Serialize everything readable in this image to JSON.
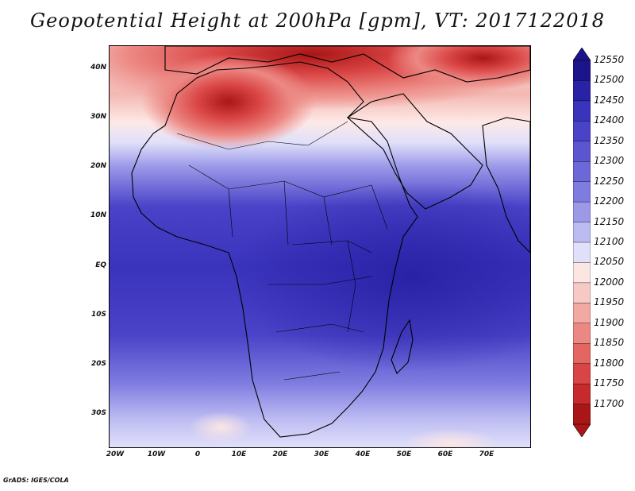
{
  "title": "Geopotential Height at 200hPa [gpm], VT: 2017122018",
  "map": {
    "region": "Africa and Middle East",
    "variable": "Geopotential Height",
    "level": "200hPa",
    "units": "gpm",
    "valid_time": "2017122018"
  },
  "lat_labels": [
    "40N",
    "30N",
    "20N",
    "10N",
    "EQ",
    "10S",
    "20S",
    "30S"
  ],
  "lon_labels": [
    "20W",
    "10W",
    "0",
    "10E",
    "20E",
    "30E",
    "40E",
    "50E",
    "60E",
    "70E"
  ],
  "colorbar": {
    "labels": [
      "12550",
      "12500",
      "12450",
      "12400",
      "12350",
      "12300",
      "12250",
      "12200",
      "12150",
      "12100",
      "12050",
      "12000",
      "11950",
      "11900",
      "11850",
      "11800",
      "11750",
      "11700"
    ],
    "colors": [
      "#1c148a",
      "#2a22a6",
      "#3a33bc",
      "#4a43c8",
      "#5b55d0",
      "#6c68d8",
      "#7f7ce0",
      "#9b99e8",
      "#bdbcf2",
      "#e0e0fa",
      "#fbe6e4",
      "#f7c9c5",
      "#f2a9a4",
      "#ec8883",
      "#e36662",
      "#d94444",
      "#c62a2a",
      "#a91616"
    ]
  },
  "footer": "GrADS: IGES/COLA"
}
